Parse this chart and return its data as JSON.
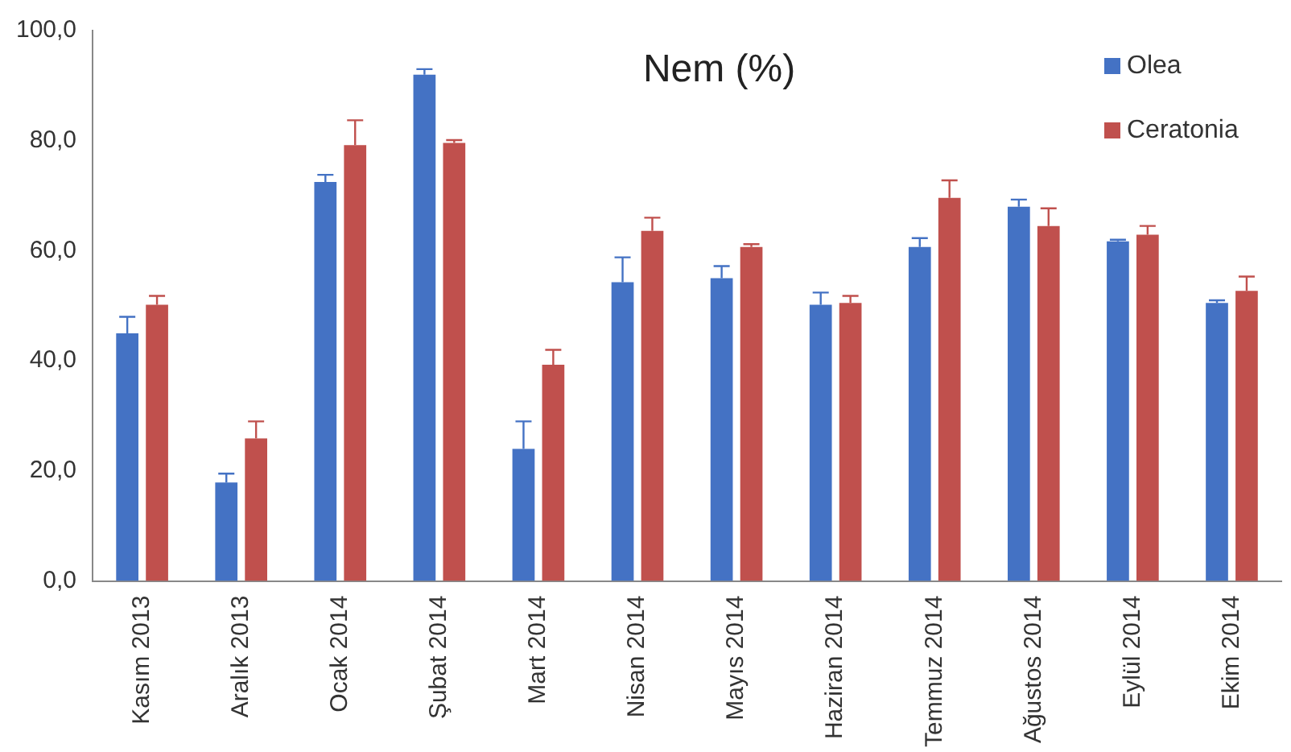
{
  "chart_data": {
    "type": "bar",
    "title": "Nem (%)",
    "categories": [
      "Kasım 2013",
      "Aralık 2013",
      "Ocak 2014",
      "Şubat 2014",
      "Mart 2014",
      "Nisan 2014",
      "Mayıs 2014",
      "Haziran 2014",
      "Temmuz 2014",
      "Ağustos 2014",
      "Eylül 2014",
      "Ekim 2014"
    ],
    "series": [
      {
        "name": "Olea",
        "color": "#4472c4",
        "values": [
          45.0,
          17.9,
          72.5,
          92.0,
          24.0,
          54.3,
          55.0,
          50.2,
          60.7,
          68.0,
          61.7,
          50.5
        ],
        "errors": [
          [
            45.0,
            48.0
          ],
          [
            17.9,
            19.5
          ],
          [
            72.5,
            73.8
          ],
          [
            92.0,
            93.0
          ],
          [
            24.0,
            29.0
          ],
          [
            54.3,
            58.8
          ],
          [
            55.0,
            57.2
          ],
          [
            50.2,
            52.4
          ],
          [
            60.7,
            62.3
          ],
          [
            68.0,
            69.3
          ],
          [
            61.7,
            62.0
          ],
          [
            50.5,
            51.0
          ]
        ]
      },
      {
        "name": "Ceratonia",
        "color": "#c0504d",
        "values": [
          50.2,
          25.9,
          79.2,
          79.6,
          39.3,
          63.6,
          60.7,
          50.5,
          69.6,
          64.5,
          62.9,
          52.7
        ],
        "errors": [
          [
            50.2,
            51.8
          ],
          [
            25.9,
            29.0
          ],
          [
            79.2,
            83.7
          ],
          [
            79.6,
            80.1
          ],
          [
            39.3,
            42.0
          ],
          [
            63.6,
            66.0
          ],
          [
            60.7,
            61.2
          ],
          [
            50.5,
            51.8
          ],
          [
            69.6,
            72.8
          ],
          [
            64.5,
            67.7
          ],
          [
            62.9,
            64.5
          ],
          [
            52.7,
            55.3
          ]
        ]
      }
    ],
    "ylim": [
      0,
      100
    ],
    "yticks": [
      {
        "value": 0,
        "label": "0,0"
      },
      {
        "value": 20,
        "label": "20,0"
      },
      {
        "value": 40,
        "label": "40,0"
      },
      {
        "value": 60,
        "label": "60,0"
      },
      {
        "value": 80,
        "label": "80,0"
      },
      {
        "value": 100,
        "label": "100,0"
      }
    ],
    "grid": false,
    "legend": "top right"
  }
}
